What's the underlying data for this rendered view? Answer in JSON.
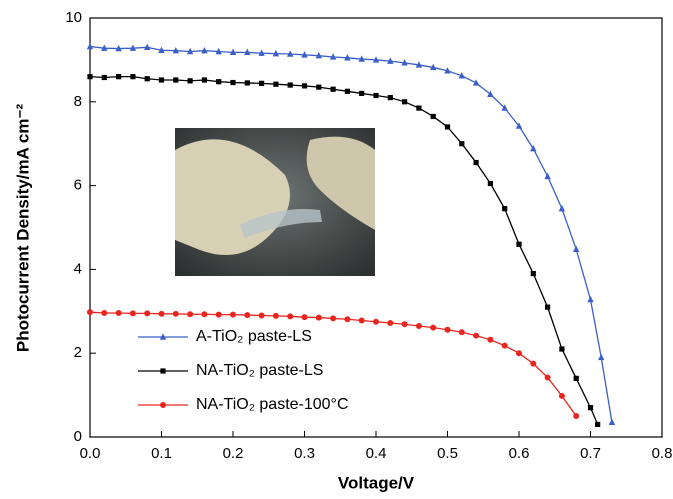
{
  "chart_data": {
    "type": "line",
    "xlabel": "Voltage/V",
    "ylabel": "Photocurrent Density/mA cm⁻²",
    "xlim": [
      0,
      0.8
    ],
    "ylim": [
      0,
      10
    ],
    "xticks": [
      {
        "value": 0,
        "label": "0.0"
      },
      0.1,
      0.2,
      0.3,
      0.4,
      0.5,
      0.6,
      0.7,
      0.8
    ],
    "yticks": [
      0,
      2,
      4,
      6,
      8,
      10
    ],
    "legend": "lower left",
    "series": [
      {
        "name": "A-TiO₂ paste-LS",
        "color": "#3b5fc8",
        "marker": "triangle",
        "x": [
          0,
          0.02,
          0.04,
          0.06,
          0.08,
          0.1,
          0.12,
          0.14,
          0.16,
          0.18,
          0.2,
          0.22,
          0.24,
          0.26,
          0.28,
          0.3,
          0.32,
          0.34,
          0.36,
          0.38,
          0.4,
          0.42,
          0.44,
          0.46,
          0.48,
          0.5,
          0.52,
          0.54,
          0.56,
          0.58,
          0.6,
          0.62,
          0.64,
          0.66,
          0.68,
          0.7,
          0.715,
          0.73
        ],
        "values": [
          9.32,
          9.28,
          9.27,
          9.28,
          9.3,
          9.23,
          9.22,
          9.2,
          9.22,
          9.2,
          9.18,
          9.18,
          9.16,
          9.15,
          9.14,
          9.12,
          9.1,
          9.07,
          9.05,
          9.02,
          9.0,
          8.97,
          8.93,
          8.88,
          8.82,
          8.74,
          8.62,
          8.45,
          8.18,
          7.85,
          7.42,
          6.88,
          6.22,
          5.45,
          4.48,
          3.28,
          1.9,
          0.35
        ]
      },
      {
        "name": "NA-TiO₂ paste-LS",
        "color": "#000000",
        "marker": "square",
        "x": [
          0,
          0.02,
          0.04,
          0.06,
          0.08,
          0.1,
          0.12,
          0.14,
          0.16,
          0.18,
          0.2,
          0.22,
          0.24,
          0.26,
          0.28,
          0.3,
          0.32,
          0.34,
          0.36,
          0.38,
          0.4,
          0.42,
          0.44,
          0.46,
          0.48,
          0.5,
          0.52,
          0.54,
          0.56,
          0.58,
          0.6,
          0.62,
          0.64,
          0.66,
          0.68,
          0.7,
          0.71
        ],
        "values": [
          8.6,
          8.58,
          8.6,
          8.6,
          8.55,
          8.52,
          8.52,
          8.5,
          8.52,
          8.48,
          8.46,
          8.45,
          8.44,
          8.42,
          8.4,
          8.38,
          8.35,
          8.3,
          8.25,
          8.2,
          8.15,
          8.1,
          8.0,
          7.85,
          7.65,
          7.4,
          7.0,
          6.55,
          6.05,
          5.45,
          4.6,
          3.9,
          3.1,
          2.1,
          1.4,
          0.7,
          0.3
        ]
      },
      {
        "name": "NA-TiO₂ paste-100°C",
        "color": "#e8261f",
        "marker": "circle",
        "x": [
          0,
          0.02,
          0.04,
          0.06,
          0.08,
          0.1,
          0.12,
          0.14,
          0.16,
          0.18,
          0.2,
          0.22,
          0.24,
          0.26,
          0.28,
          0.3,
          0.32,
          0.34,
          0.36,
          0.38,
          0.4,
          0.42,
          0.44,
          0.46,
          0.48,
          0.5,
          0.52,
          0.54,
          0.56,
          0.58,
          0.6,
          0.62,
          0.64,
          0.66,
          0.68
        ],
        "values": [
          2.98,
          2.96,
          2.96,
          2.95,
          2.95,
          2.94,
          2.94,
          2.93,
          2.93,
          2.92,
          2.92,
          2.91,
          2.9,
          2.89,
          2.88,
          2.86,
          2.85,
          2.83,
          2.81,
          2.78,
          2.75,
          2.72,
          2.69,
          2.65,
          2.61,
          2.56,
          2.5,
          2.42,
          2.32,
          2.18,
          2.0,
          1.75,
          1.42,
          0.98,
          0.5
        ]
      }
    ]
  }
}
